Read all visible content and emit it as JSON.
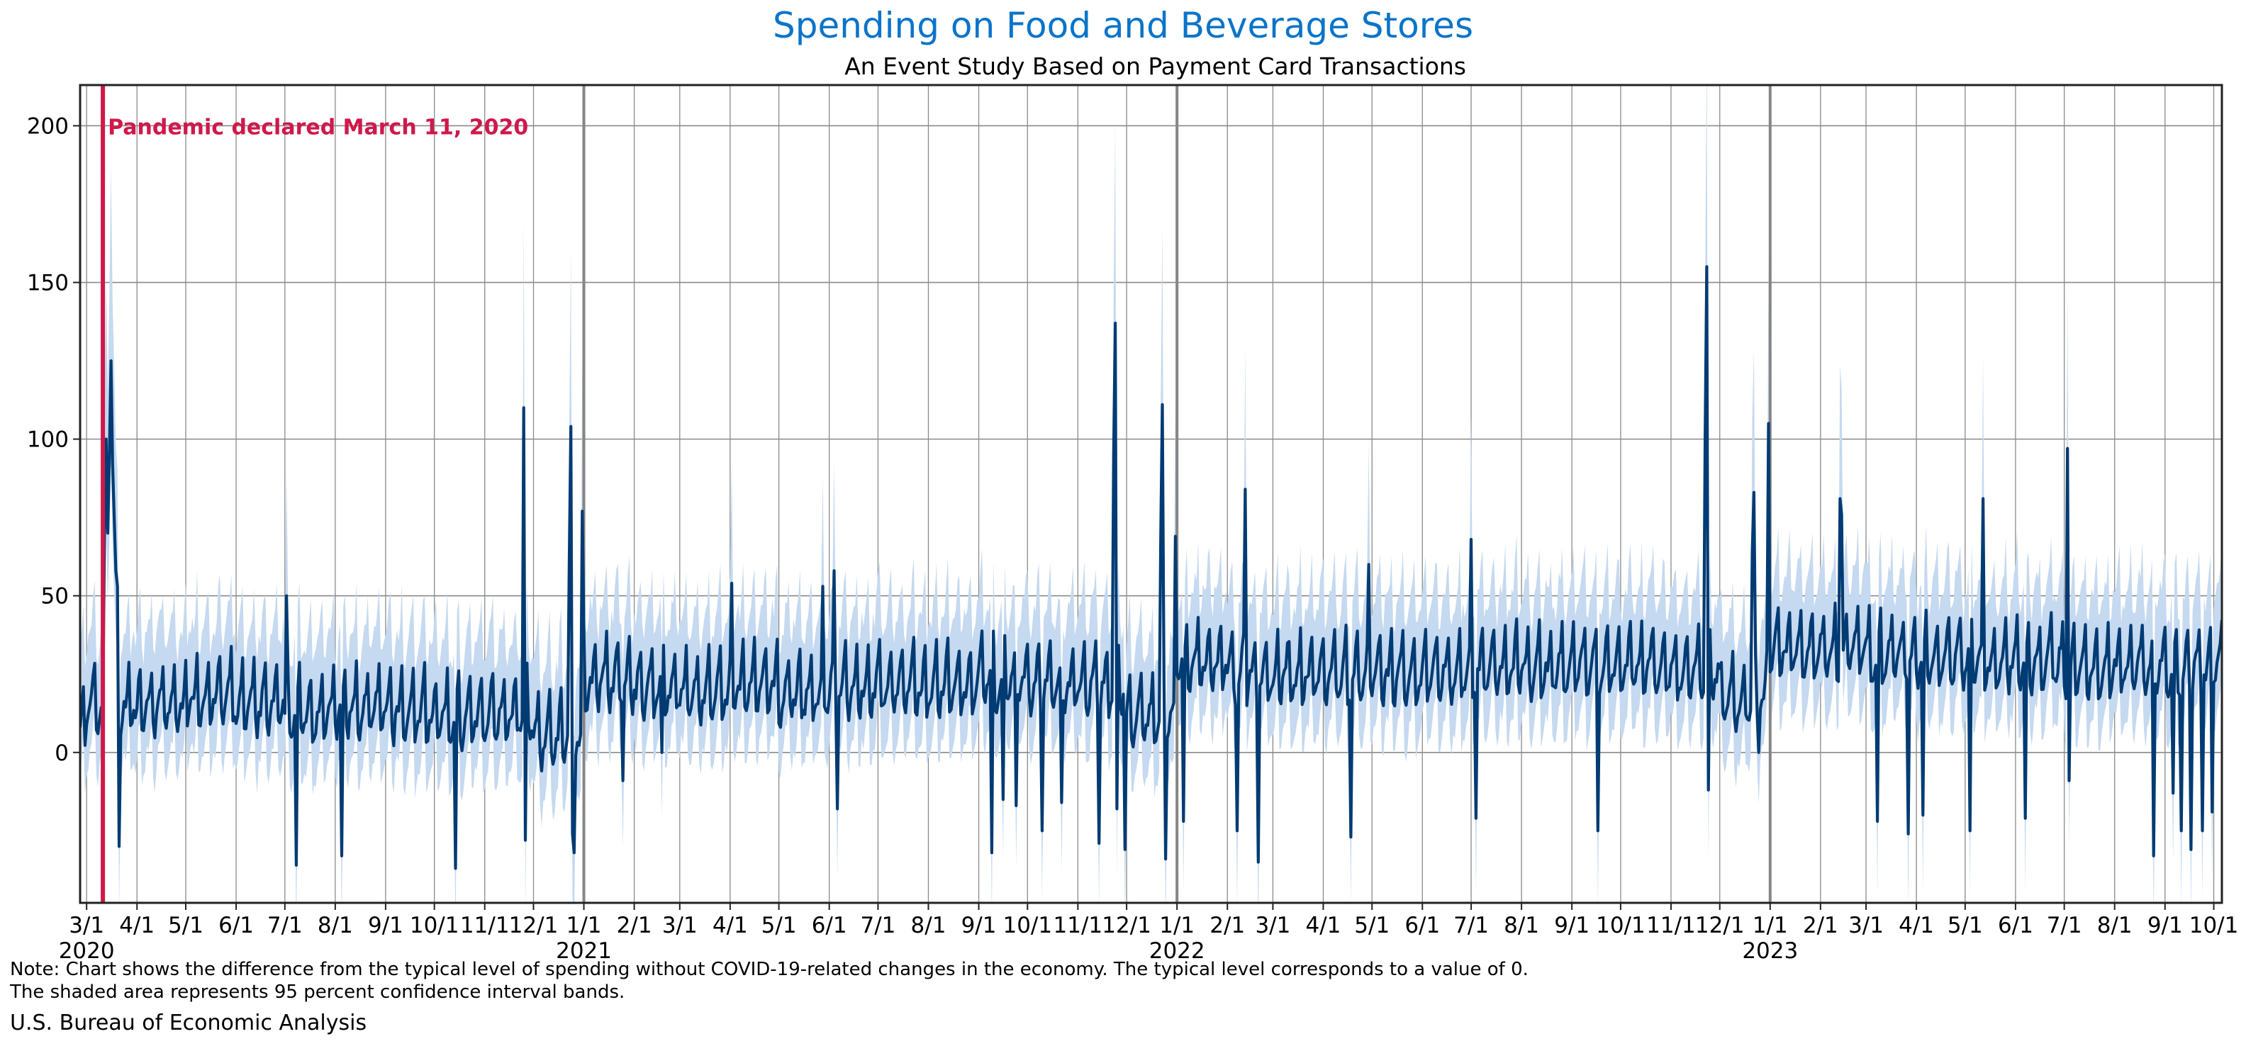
{
  "page": {
    "title": "Spending on Food and Beverage Stores",
    "subtitle": "An Event Study Based on Payment Card Transactions",
    "note_line1": "Note: Chart shows the difference from the typical level of spending without COVID-19-related changes in the economy. The typical level corresponds to a value of 0.",
    "note_line2": "The shaded area represents 95 percent confidence interval bands.",
    "source": "U.S. Bureau of Economic Analysis"
  },
  "chart_data": {
    "type": "line",
    "title": "Spending on Food and Beverage Stores",
    "subtitle": "An Event Study Based on Payment Card Transactions",
    "xlabel": "",
    "ylabel": "",
    "frequency": "daily",
    "x_range": [
      "2020-02-26",
      "2023-10-06"
    ],
    "ylim": [
      -48,
      213
    ],
    "yticks": [
      0,
      50,
      100,
      150,
      200
    ],
    "grid": true,
    "legend": "none",
    "colors": {
      "line": "#003b73",
      "band": "#c5d9f0",
      "annotation": "#d0184a",
      "grid": "#8a8a8a",
      "year_divider": "#858585",
      "title": "#0a74c9"
    },
    "series": [
      {
        "name": "Difference from typical spending",
        "kind": "line",
        "start": "2020-02-26",
        "end": "2023-10-06",
        "monthly_baseline": {
          "2020-02": 8,
          "2020-03": 14,
          "2020-04": 14,
          "2020-05": 17,
          "2020-06": 14,
          "2020-07": 12,
          "2020-08": 13,
          "2020-09": 12,
          "2020-10": 10,
          "2020-11": 12,
          "2020-12": 4,
          "2021-01": 22,
          "2021-02": 20,
          "2021-03": 18,
          "2021-04": 20,
          "2021-05": 18,
          "2021-06": 20,
          "2021-07": 20,
          "2021-08": 20,
          "2021-09": 22,
          "2021-10": 21,
          "2021-11": 20,
          "2021-12": 10,
          "2022-01": 28,
          "2022-02": 24,
          "2022-03": 24,
          "2022-04": 24,
          "2022-05": 24,
          "2022-06": 25,
          "2022-07": 26,
          "2022-08": 26,
          "2022-09": 27,
          "2022-10": 27,
          "2022-11": 25,
          "2022-12": 16,
          "2023-01": 32,
          "2023-02": 32,
          "2023-03": 30,
          "2023-04": 29,
          "2023-05": 28,
          "2023-06": 28,
          "2023-07": 26,
          "2023-08": 27,
          "2023-09": 26,
          "2023-10": 28
        },
        "weekday_offsets_sun_to_sat": [
          -7,
          -3,
          0,
          3,
          8,
          14,
          -6
        ],
        "events": [
          {
            "date": "2020-03-12",
            "value": 70
          },
          {
            "date": "2020-03-13",
            "value": 100
          },
          {
            "date": "2020-03-14",
            "value": 70
          },
          {
            "date": "2020-03-15",
            "value": 95
          },
          {
            "date": "2020-03-16",
            "value": 125
          },
          {
            "date": "2020-03-17",
            "value": 92
          },
          {
            "date": "2020-03-18",
            "value": 75
          },
          {
            "date": "2020-03-19",
            "value": 58
          },
          {
            "date": "2020-03-20",
            "value": 53
          },
          {
            "date": "2020-03-21",
            "value": -30
          },
          {
            "date": "2020-07-02",
            "value": 50
          },
          {
            "date": "2020-07-08",
            "value": -36
          },
          {
            "date": "2020-08-05",
            "value": -33
          },
          {
            "date": "2020-10-14",
            "value": -37
          },
          {
            "date": "2020-11-25",
            "value": 110
          },
          {
            "date": "2020-11-26",
            "value": -28
          },
          {
            "date": "2020-12-23",
            "value": 60
          },
          {
            "date": "2020-12-24",
            "value": 104
          },
          {
            "date": "2020-12-25",
            "value": -26
          },
          {
            "date": "2020-12-26",
            "value": -32
          },
          {
            "date": "2020-12-31",
            "value": 77
          },
          {
            "date": "2021-01-25",
            "value": -9
          },
          {
            "date": "2021-02-18",
            "value": 0
          },
          {
            "date": "2021-04-02",
            "value": 54
          },
          {
            "date": "2021-05-28",
            "value": 53
          },
          {
            "date": "2021-06-04",
            "value": 58
          },
          {
            "date": "2021-06-06",
            "value": -18
          },
          {
            "date": "2021-09-09",
            "value": -32
          },
          {
            "date": "2021-09-16",
            "value": -15
          },
          {
            "date": "2021-09-24",
            "value": -17
          },
          {
            "date": "2021-10-10",
            "value": -25
          },
          {
            "date": "2021-10-22",
            "value": -16
          },
          {
            "date": "2021-11-14",
            "value": -29
          },
          {
            "date": "2021-11-23",
            "value": 95
          },
          {
            "date": "2021-11-24",
            "value": 137
          },
          {
            "date": "2021-11-25",
            "value": -18
          },
          {
            "date": "2021-11-30",
            "value": -31
          },
          {
            "date": "2021-12-22",
            "value": 70
          },
          {
            "date": "2021-12-23",
            "value": 111
          },
          {
            "date": "2021-12-25",
            "value": -34
          },
          {
            "date": "2021-12-31",
            "value": 69
          },
          {
            "date": "2022-01-05",
            "value": -22
          },
          {
            "date": "2022-02-07",
            "value": -25
          },
          {
            "date": "2022-02-12",
            "value": 84
          },
          {
            "date": "2022-02-20",
            "value": -35
          },
          {
            "date": "2022-04-18",
            "value": -27
          },
          {
            "date": "2022-04-29",
            "value": 60
          },
          {
            "date": "2022-07-01",
            "value": 68
          },
          {
            "date": "2022-07-04",
            "value": -21
          },
          {
            "date": "2022-09-17",
            "value": -25
          },
          {
            "date": "2022-11-22",
            "value": 100
          },
          {
            "date": "2022-11-23",
            "value": 155
          },
          {
            "date": "2022-11-24",
            "value": -12
          },
          {
            "date": "2022-12-21",
            "value": 64
          },
          {
            "date": "2022-12-22",
            "value": 83
          },
          {
            "date": "2022-12-25",
            "value": 0
          },
          {
            "date": "2022-12-31",
            "value": 105
          },
          {
            "date": "2023-02-13",
            "value": 81
          },
          {
            "date": "2023-02-14",
            "value": 76
          },
          {
            "date": "2023-03-08",
            "value": -22
          },
          {
            "date": "2023-03-27",
            "value": -26
          },
          {
            "date": "2023-04-05",
            "value": -20
          },
          {
            "date": "2023-05-04",
            "value": -25
          },
          {
            "date": "2023-05-12",
            "value": 81
          },
          {
            "date": "2023-06-07",
            "value": -21
          },
          {
            "date": "2023-07-03",
            "value": 97
          },
          {
            "date": "2023-07-04",
            "value": -9
          },
          {
            "date": "2023-08-25",
            "value": -33
          },
          {
            "date": "2023-09-06",
            "value": -13
          },
          {
            "date": "2023-09-11",
            "value": -25
          },
          {
            "date": "2023-09-17",
            "value": -31
          },
          {
            "date": "2023-09-24",
            "value": -25
          },
          {
            "date": "2023-09-30",
            "value": -19
          }
        ]
      },
      {
        "name": "95 percent confidence interval",
        "kind": "band",
        "typical_upper_offset": 24,
        "typical_lower_offset": -16,
        "spike_scaling": 0.35
      }
    ],
    "x_ticks": [
      {
        "date": "2020-03-01",
        "label": "3/1",
        "year": "2020"
      },
      {
        "date": "2020-04-01",
        "label": "4/1"
      },
      {
        "date": "2020-05-01",
        "label": "5/1"
      },
      {
        "date": "2020-06-01",
        "label": "6/1"
      },
      {
        "date": "2020-07-01",
        "label": "7/1"
      },
      {
        "date": "2020-08-01",
        "label": "8/1"
      },
      {
        "date": "2020-09-01",
        "label": "9/1"
      },
      {
        "date": "2020-10-01",
        "label": "10/1"
      },
      {
        "date": "2020-11-01",
        "label": "11/1"
      },
      {
        "date": "2020-12-01",
        "label": "12/1"
      },
      {
        "date": "2021-01-01",
        "label": "1/1",
        "year": "2021"
      },
      {
        "date": "2021-02-01",
        "label": "2/1"
      },
      {
        "date": "2021-03-01",
        "label": "3/1"
      },
      {
        "date": "2021-04-01",
        "label": "4/1"
      },
      {
        "date": "2021-05-01",
        "label": "5/1"
      },
      {
        "date": "2021-06-01",
        "label": "6/1"
      },
      {
        "date": "2021-07-01",
        "label": "7/1"
      },
      {
        "date": "2021-08-01",
        "label": "8/1"
      },
      {
        "date": "2021-09-01",
        "label": "9/1"
      },
      {
        "date": "2021-10-01",
        "label": "10/1"
      },
      {
        "date": "2021-11-01",
        "label": "11/1"
      },
      {
        "date": "2021-12-01",
        "label": "12/1"
      },
      {
        "date": "2022-01-01",
        "label": "1/1",
        "year": "2022"
      },
      {
        "date": "2022-02-01",
        "label": "2/1"
      },
      {
        "date": "2022-03-01",
        "label": "3/1"
      },
      {
        "date": "2022-04-01",
        "label": "4/1"
      },
      {
        "date": "2022-05-01",
        "label": "5/1"
      },
      {
        "date": "2022-06-01",
        "label": "6/1"
      },
      {
        "date": "2022-07-01",
        "label": "7/1"
      },
      {
        "date": "2022-08-01",
        "label": "8/1"
      },
      {
        "date": "2022-09-01",
        "label": "9/1"
      },
      {
        "date": "2022-10-01",
        "label": "10/1"
      },
      {
        "date": "2022-11-01",
        "label": "11/1"
      },
      {
        "date": "2022-12-01",
        "label": "12/1"
      },
      {
        "date": "2023-01-01",
        "label": "1/1",
        "year": "2023"
      },
      {
        "date": "2023-02-01",
        "label": "2/1"
      },
      {
        "date": "2023-03-01",
        "label": "3/1"
      },
      {
        "date": "2023-04-01",
        "label": "4/1"
      },
      {
        "date": "2023-05-01",
        "label": "5/1"
      },
      {
        "date": "2023-06-01",
        "label": "6/1"
      },
      {
        "date": "2023-07-01",
        "label": "7/1"
      },
      {
        "date": "2023-08-01",
        "label": "8/1"
      },
      {
        "date": "2023-09-01",
        "label": "9/1"
      },
      {
        "date": "2023-10-01",
        "label": "10/1"
      }
    ],
    "y_tick_labels": [
      "0",
      "50",
      "100",
      "150",
      "200"
    ],
    "annotations": [
      {
        "type": "vertical-line",
        "date": "2020-03-11",
        "label": "Pandemic declared March 11, 2020"
      }
    ],
    "year_dividers": [
      "2021-01-01",
      "2022-01-01",
      "2023-01-01"
    ]
  }
}
